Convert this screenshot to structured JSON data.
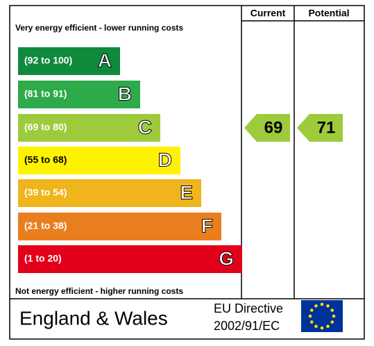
{
  "header": {
    "current": "Current",
    "potential": "Potential"
  },
  "top_note": "Very energy efficient - lower running costs",
  "bottom_note": "Not energy efficient - higher running costs",
  "bands": [
    {
      "label": "(92 to 100)",
      "letter": "A",
      "color": "#0f8a3c"
    },
    {
      "label": "(81 to 91)",
      "letter": "B",
      "color": "#2daa4a"
    },
    {
      "label": "(69 to 80)",
      "letter": "C",
      "color": "#9dcb3c"
    },
    {
      "label": "(55 to 68)",
      "letter": "D",
      "color": "#fff200"
    },
    {
      "label": "(39 to 54)",
      "letter": "E",
      "color": "#f0b41c"
    },
    {
      "label": "(21 to 38)",
      "letter": "F",
      "color": "#e97e1f"
    },
    {
      "label": "(1 to 20)",
      "letter": "G",
      "color": "#e2001a"
    }
  ],
  "ratings": {
    "current": 69,
    "potential": 71
  },
  "footer": {
    "region": "England & Wales",
    "directive_line1": "EU Directive",
    "directive_line2": "2002/91/EC"
  }
}
